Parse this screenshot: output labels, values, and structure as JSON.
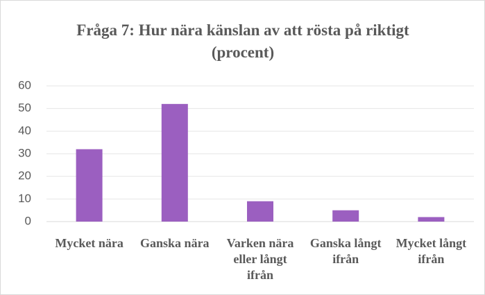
{
  "chart_data": {
    "type": "bar",
    "title": "Fråga 7: Hur nära känslan av att rösta på riktigt (procent)",
    "categories": [
      "Mycket nära",
      "Ganska nära",
      "Varken nära eller långt ifrån",
      "Ganska långt ifrån",
      "Mycket långt ifrån"
    ],
    "values": [
      32,
      52,
      9,
      5,
      2
    ],
    "color": "#9b5fc0",
    "ylim": [
      0,
      60
    ],
    "yticks": [
      0,
      10,
      20,
      30,
      40,
      50,
      60
    ],
    "grid": true
  }
}
